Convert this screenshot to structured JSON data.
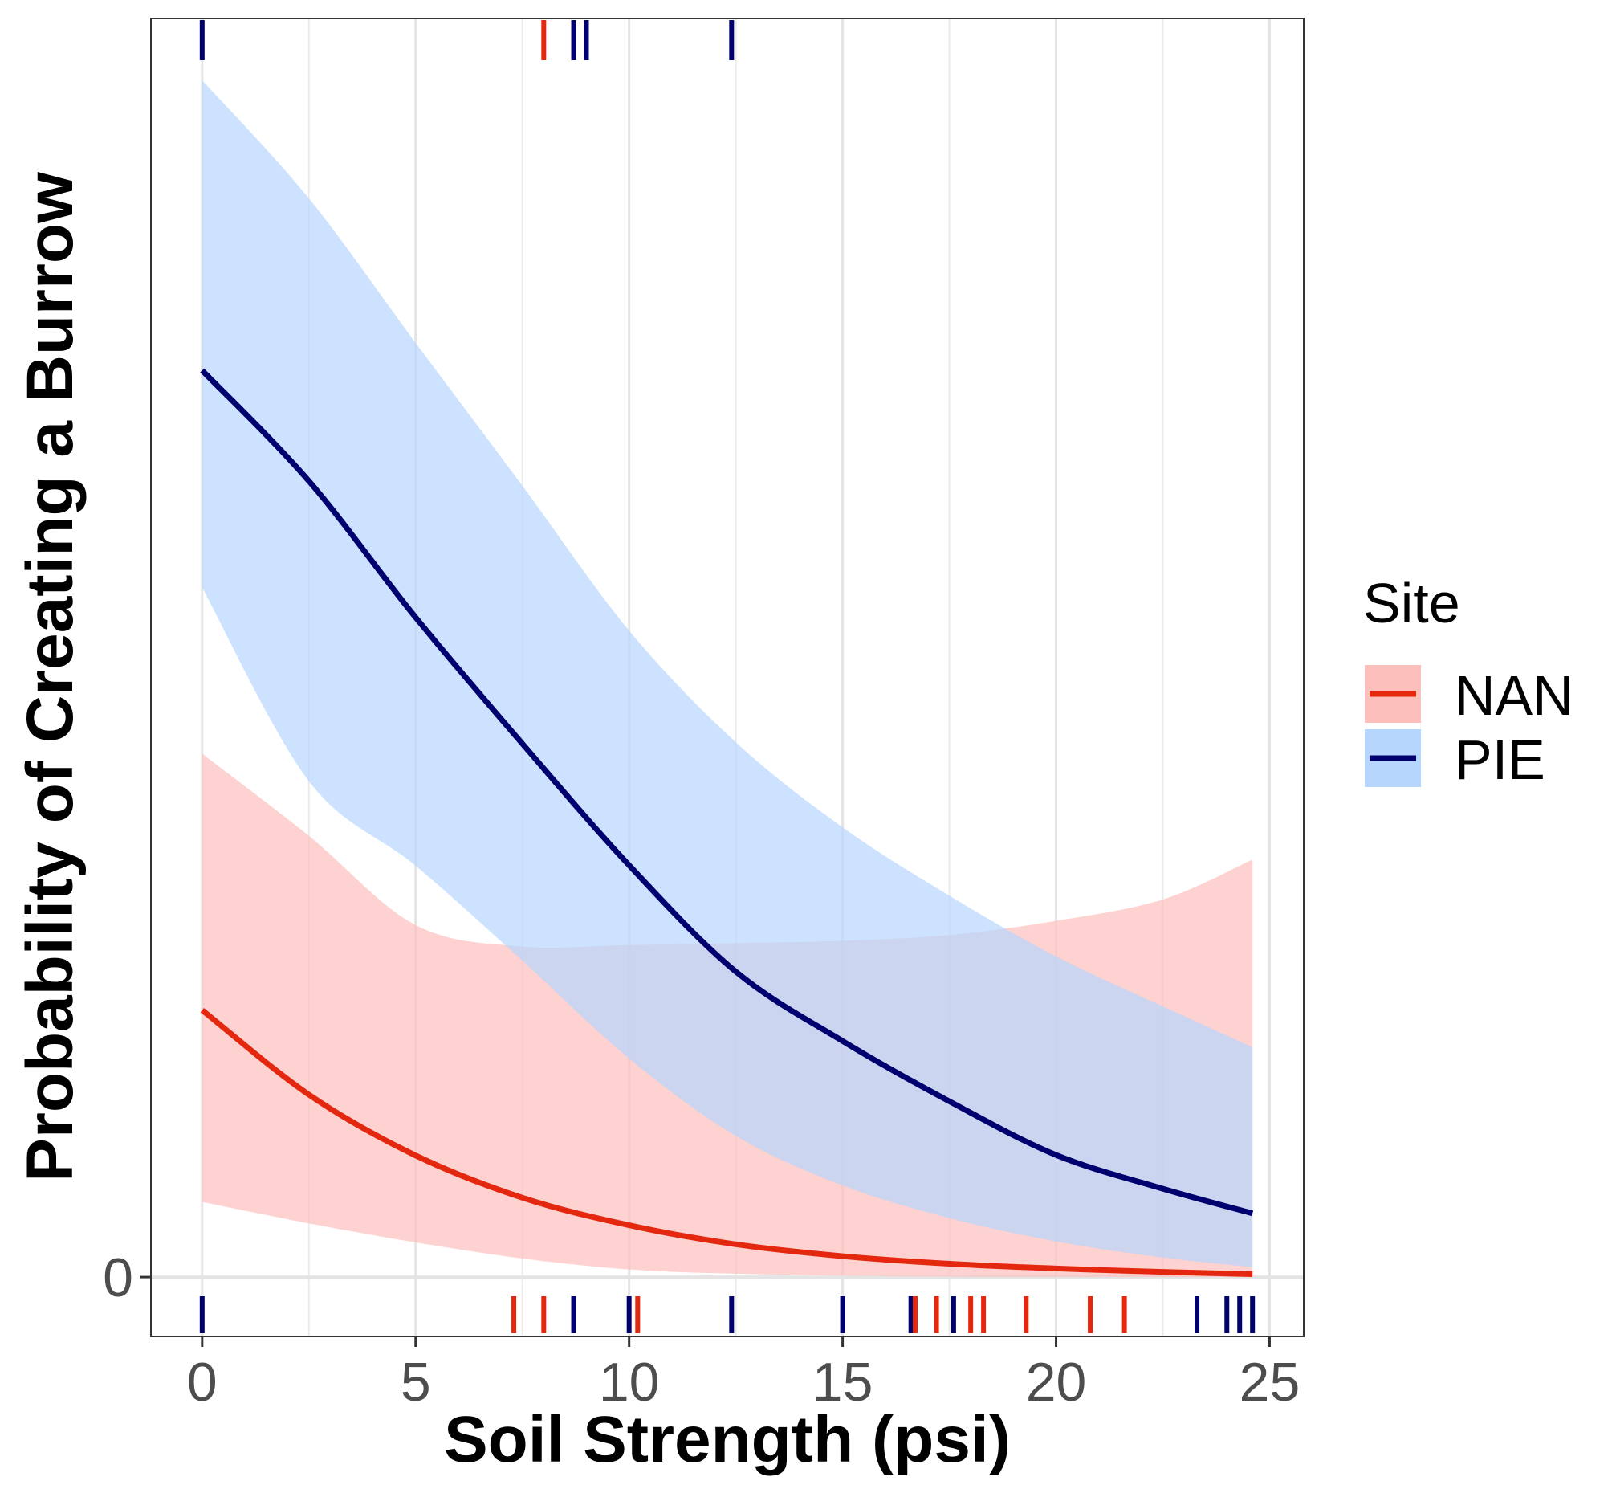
{
  "chart_data": {
    "type": "line",
    "title": "",
    "xlabel": "Soil Strength (psi)",
    "ylabel": "Probability of Creating a Burrow",
    "xlim": [
      -1.2,
      25.8
    ],
    "ylim": [
      -0.0125,
      0.265
    ],
    "x_ticks": [
      0,
      5,
      10,
      15,
      20,
      25
    ],
    "x_tick_labels": [
      "0",
      "5",
      "10",
      "15",
      "20",
      "25"
    ],
    "y_ticks": [
      0
    ],
    "y_tick_labels": [
      "0"
    ],
    "grid": true,
    "legend": {
      "title": "Site",
      "placement": "right"
    },
    "colors": {
      "NAN_line": "#e3280f",
      "NAN_ribbon": "#fcbfbc",
      "PIE_line": "#00006e",
      "PIE_ribbon": "#b7d6fd"
    },
    "series": [
      {
        "name": "NAN",
        "x": [
          0,
          2.5,
          5,
          7.5,
          10,
          12.5,
          15,
          17.5,
          20,
          22.5,
          24.6
        ],
        "y": [
          0.0562,
          0.0384,
          0.0256,
          0.0167,
          0.0109,
          0.0069,
          0.0044,
          0.0028,
          0.0018,
          0.0011,
          0.0006
        ],
        "lower": [
          0.0158,
          0.0113,
          0.0073,
          0.0039,
          0.0016,
          0.0007,
          0.0003,
          0.0001,
          5e-05,
          2e-05,
          1e-05
        ],
        "upper": [
          0.1102,
          0.0929,
          0.0741,
          0.0696,
          0.0699,
          0.0703,
          0.0708,
          0.072,
          0.075,
          0.0795,
          0.0879
        ]
      },
      {
        "name": "PIE",
        "x": [
          0,
          2.5,
          5,
          7.5,
          10,
          12.5,
          15,
          17.5,
          20,
          22.5,
          24.6
        ],
        "y": [
          0.1909,
          0.1676,
          0.1389,
          0.1123,
          0.0867,
          0.0643,
          0.0497,
          0.037,
          0.0257,
          0.0186,
          0.0134
        ],
        "lower": [
          0.1452,
          0.1044,
          0.0866,
          0.0666,
          0.046,
          0.0297,
          0.0193,
          0.0124,
          0.0075,
          0.0041,
          0.0021
        ],
        "upper": [
          0.252,
          0.2271,
          0.1967,
          0.1666,
          0.1361,
          0.1126,
          0.0947,
          0.0803,
          0.0675,
          0.057,
          0.0484
        ]
      }
    ],
    "rugs": {
      "bottom": [
        {
          "series": "PIE",
          "x": [
            0,
            8.7,
            10,
            12.4,
            15,
            16.6,
            17.6,
            23.3,
            24.0,
            24.3,
            24.6
          ]
        },
        {
          "series": "NAN",
          "x": [
            7.3,
            8.0,
            10.2,
            16.7,
            17.2,
            18.0,
            18.3,
            19.3,
            20.8,
            21.6
          ]
        }
      ],
      "top": [
        {
          "series": "PIE",
          "x": [
            0,
            8.7,
            9.0,
            12.4
          ]
        },
        {
          "series": "NAN",
          "x": [
            8.0
          ]
        }
      ]
    }
  }
}
